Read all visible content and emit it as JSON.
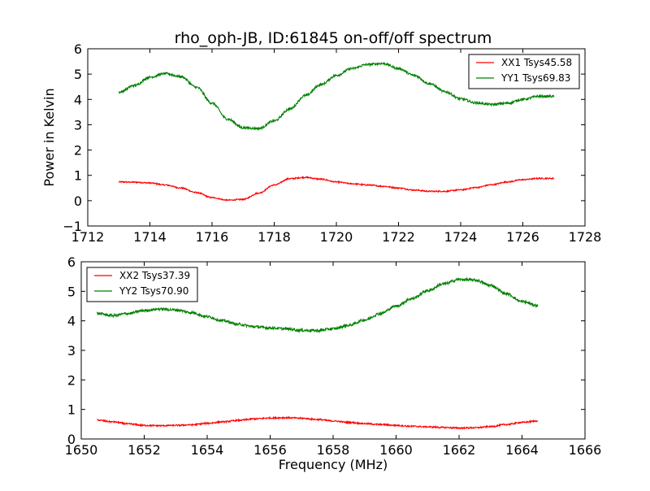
{
  "figure": {
    "title": "rho_oph-JB, ID:61845 on-off/off spectrum",
    "ylabel": "Power in Kelvin",
    "xlabel": "Frequency (MHz)"
  },
  "chart_data": [
    {
      "type": "line",
      "title": "rho_oph-JB, ID:61845 on-off/off spectrum",
      "xlabel": "",
      "ylabel": "Power in Kelvin",
      "xlim": [
        1712,
        1728
      ],
      "ylim": [
        -1,
        6
      ],
      "xticks": [
        1712,
        1714,
        1716,
        1718,
        1720,
        1722,
        1724,
        1726,
        1728
      ],
      "yticks": [
        -1,
        0,
        1,
        2,
        3,
        4,
        5,
        6
      ],
      "xtick_labels": [
        "1712",
        "1714",
        "1716",
        "1718",
        "1720",
        "1722",
        "1724",
        "1726",
        "1728"
      ],
      "ytick_labels": [
        "−1",
        "0",
        "1",
        "2",
        "3",
        "4",
        "5",
        "6"
      ],
      "grid": false,
      "legend": "top-right",
      "series": [
        {
          "name": "XX1 Tsys45.58",
          "color": "#ff0000",
          "x": [
            1713.0,
            1713.5,
            1714.0,
            1714.5,
            1715.0,
            1715.5,
            1716.0,
            1716.5,
            1717.0,
            1717.5,
            1718.0,
            1718.5,
            1719.0,
            1719.5,
            1720.0,
            1720.5,
            1721.0,
            1721.5,
            1722.0,
            1722.5,
            1723.0,
            1723.5,
            1724.0,
            1724.5,
            1725.0,
            1725.5,
            1726.0,
            1726.5,
            1727.0
          ],
          "y": [
            0.74,
            0.73,
            0.7,
            0.62,
            0.5,
            0.32,
            0.12,
            0.02,
            0.05,
            0.3,
            0.62,
            0.87,
            0.92,
            0.85,
            0.74,
            0.67,
            0.62,
            0.57,
            0.5,
            0.42,
            0.37,
            0.37,
            0.43,
            0.52,
            0.63,
            0.74,
            0.83,
            0.88,
            0.88
          ]
        },
        {
          "name": "YY1 Tsys69.83",
          "color": "#008000",
          "x": [
            1713.0,
            1713.5,
            1714.0,
            1714.5,
            1715.0,
            1715.5,
            1716.0,
            1716.5,
            1717.0,
            1717.5,
            1718.0,
            1718.5,
            1719.0,
            1719.5,
            1720.0,
            1720.5,
            1721.0,
            1721.5,
            1722.0,
            1722.5,
            1723.0,
            1723.5,
            1724.0,
            1724.5,
            1725.0,
            1725.5,
            1726.0,
            1726.5,
            1727.0
          ],
          "y": [
            4.28,
            4.55,
            4.88,
            5.02,
            4.9,
            4.48,
            3.85,
            3.22,
            2.88,
            2.85,
            3.15,
            3.62,
            4.15,
            4.58,
            4.95,
            5.22,
            5.38,
            5.42,
            5.22,
            4.95,
            4.62,
            4.3,
            4.02,
            3.86,
            3.8,
            3.85,
            4.0,
            4.12,
            4.12
          ]
        }
      ]
    },
    {
      "type": "line",
      "title": "",
      "xlabel": "Frequency (MHz)",
      "ylabel": "",
      "xlim": [
        1650,
        1666
      ],
      "ylim": [
        0,
        6
      ],
      "xticks": [
        1650,
        1652,
        1654,
        1656,
        1658,
        1660,
        1662,
        1664,
        1666
      ],
      "yticks": [
        0,
        1,
        2,
        3,
        4,
        5,
        6
      ],
      "xtick_labels": [
        "1650",
        "1652",
        "1654",
        "1656",
        "1658",
        "1660",
        "1662",
        "1664",
        "1666"
      ],
      "ytick_labels": [
        "0",
        "1",
        "2",
        "3",
        "4",
        "5",
        "6"
      ],
      "grid": false,
      "legend": "top-left",
      "series": [
        {
          "name": "XX2 Tsys37.39",
          "color": "#ff0000",
          "x": [
            1650.5,
            1651.0,
            1651.5,
            1652.0,
            1652.5,
            1653.0,
            1653.5,
            1654.0,
            1654.5,
            1655.0,
            1655.5,
            1656.0,
            1656.5,
            1657.0,
            1657.5,
            1658.0,
            1658.5,
            1659.0,
            1659.5,
            1660.0,
            1660.5,
            1661.0,
            1661.5,
            1662.0,
            1662.5,
            1663.0,
            1663.5,
            1664.0,
            1664.5
          ],
          "y": [
            0.64,
            0.58,
            0.51,
            0.46,
            0.45,
            0.46,
            0.48,
            0.53,
            0.58,
            0.63,
            0.68,
            0.71,
            0.72,
            0.7,
            0.66,
            0.61,
            0.56,
            0.52,
            0.49,
            0.46,
            0.43,
            0.41,
            0.39,
            0.37,
            0.38,
            0.42,
            0.49,
            0.56,
            0.61
          ]
        },
        {
          "name": "YY2 Tsys70.90",
          "color": "#008000",
          "x": [
            1650.5,
            1651.0,
            1651.5,
            1652.0,
            1652.5,
            1653.0,
            1653.5,
            1654.0,
            1654.5,
            1655.0,
            1655.5,
            1656.0,
            1656.5,
            1657.0,
            1657.5,
            1658.0,
            1658.5,
            1659.0,
            1659.5,
            1660.0,
            1660.5,
            1661.0,
            1661.5,
            1662.0,
            1662.5,
            1663.0,
            1663.5,
            1664.0,
            1664.5
          ],
          "y": [
            4.25,
            4.18,
            4.25,
            4.35,
            4.4,
            4.37,
            4.28,
            4.14,
            4.0,
            3.88,
            3.8,
            3.76,
            3.73,
            3.68,
            3.67,
            3.73,
            3.85,
            4.03,
            4.25,
            4.5,
            4.75,
            5.02,
            5.25,
            5.4,
            5.38,
            5.2,
            4.92,
            4.65,
            4.52
          ]
        }
      ]
    }
  ]
}
